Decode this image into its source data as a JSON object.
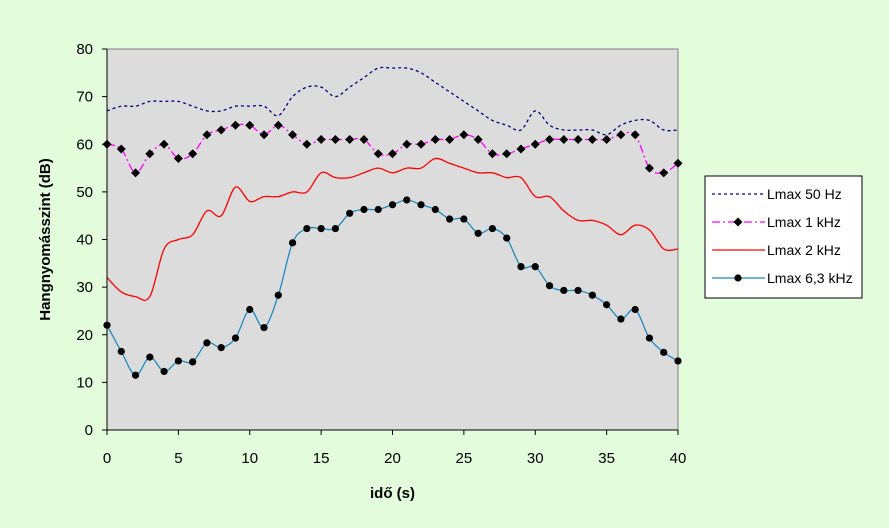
{
  "chart_data": {
    "type": "line",
    "xlabel": "idő (s)",
    "ylabel": "Hangnyomásszint (dB)",
    "xlim": [
      0,
      40
    ],
    "ylim": [
      0,
      80
    ],
    "xticks": [
      0,
      5,
      10,
      15,
      20,
      25,
      30,
      35,
      40
    ],
    "yticks": [
      0,
      10,
      20,
      30,
      40,
      50,
      60,
      70,
      80
    ],
    "grid": false,
    "legend_position": "right",
    "plot_background": "#dcdcdc",
    "figure_background": "#e3fcdc",
    "x": [
      0,
      1,
      2,
      3,
      4,
      5,
      6,
      7,
      8,
      9,
      10,
      11,
      12,
      13,
      14,
      15,
      16,
      17,
      18,
      19,
      20,
      21,
      22,
      23,
      24,
      25,
      26,
      27,
      28,
      29,
      30,
      31,
      32,
      33,
      34,
      35,
      36,
      37,
      38,
      39,
      40
    ],
    "series": [
      {
        "name": "Lmax 50 Hz",
        "color": "#000080",
        "style": "dotted",
        "marker": "none",
        "values": [
          67,
          68,
          68,
          69,
          69,
          69,
          68,
          67,
          67,
          68,
          68,
          68,
          66,
          70,
          72,
          72,
          70,
          72,
          74,
          76,
          76,
          76,
          75,
          73,
          71,
          69,
          67,
          65,
          64,
          63,
          67,
          64,
          63,
          63,
          63,
          62,
          64,
          65,
          65,
          63,
          63
        ]
      },
      {
        "name": "Lmax 1 kHz",
        "color": "#ff00ff",
        "style": "dashdot",
        "marker": "diamond",
        "marker_color": "#000000",
        "values": [
          60,
          59,
          54,
          58,
          60,
          57,
          58,
          62,
          63,
          64,
          64,
          62,
          64,
          62,
          60,
          61,
          61,
          61,
          61,
          58,
          58,
          60,
          60,
          61,
          61,
          62,
          61,
          58,
          58,
          59,
          60,
          61,
          61,
          61,
          61,
          61,
          62,
          62,
          55,
          54,
          56
        ]
      },
      {
        "name": "Lmax 2 kHz",
        "color": "#ff0000",
        "style": "solid",
        "marker": "none",
        "values": [
          32,
          29,
          28,
          28,
          38,
          40,
          41,
          46,
          45,
          51,
          48,
          49,
          49,
          50,
          50,
          54,
          53,
          53,
          54,
          55,
          54,
          55,
          55,
          57,
          56,
          55,
          54,
          54,
          53,
          53,
          49,
          49,
          46,
          44,
          44,
          43,
          41,
          43,
          42,
          38,
          38
        ]
      },
      {
        "name": "Lmax 6,3 kHz",
        "color": "#1f8bc0",
        "style": "solid",
        "marker": "circle",
        "marker_color": "#000000",
        "values": [
          22,
          16.5,
          11.5,
          15.3,
          12.3,
          14.5,
          14.3,
          18.3,
          17.3,
          19.3,
          25.3,
          21.5,
          28.3,
          39.3,
          42.3,
          42.3,
          42.3,
          45.5,
          46.3,
          46.3,
          47.3,
          48.3,
          47.3,
          46.3,
          44.3,
          44.3,
          41.3,
          42.3,
          40.3,
          34.3,
          34.3,
          30.3,
          29.3,
          29.3,
          28.3,
          26.3,
          23.3,
          25.3,
          19.3,
          16.3,
          14.5
        ]
      }
    ]
  }
}
